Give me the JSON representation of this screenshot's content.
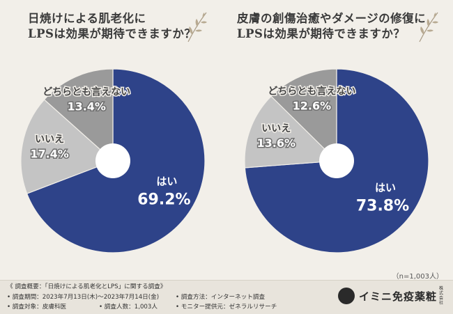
{
  "chart_data": [
    {
      "type": "pie",
      "title": "日焼けによる肌老化に LPSは効果が期待できますか？",
      "title_lines": [
        "日焼けによる肌老化に",
        "LPSは効果が期待できますか？"
      ],
      "categories": [
        "はい",
        "いいえ",
        "どちらとも言えない"
      ],
      "values": [
        69.2,
        17.4,
        13.4
      ],
      "value_labels": [
        "69.2%",
        "17.4%",
        "13.4%"
      ],
      "colors": [
        "#2e4389",
        "#c4c4c4",
        "#9a9a9a"
      ],
      "start_angle": "12 o'clock, clockwise",
      "center_hole": true
    },
    {
      "type": "pie",
      "title": "皮膚の創傷治癒やダメージの修復に LPSは効果が期待できますか？",
      "title_lines": [
        "皮膚の創傷治癒やダメージの修復に",
        "LPSは効果が期待できますか？"
      ],
      "categories": [
        "はい",
        "いいえ",
        "どちらとも言えない"
      ],
      "values": [
        73.8,
        13.6,
        12.6
      ],
      "value_labels": [
        "73.8%",
        "13.6%",
        "12.6%"
      ],
      "colors": [
        "#2e4389",
        "#c4c4c4",
        "#9a9a9a"
      ],
      "start_angle": "12 o'clock, clockwise",
      "center_hole": true
    }
  ],
  "sample_note": "（n=1,003人）",
  "footer": {
    "overview": "《 調査概要：「日焼けによる肌老化とLPS」に関する調査》",
    "period": "• 調査期間：2023年7月13日(木)～2023年7月14日(金)",
    "target": "• 調査対象：皮膚科医",
    "count": "• 調査人数：1,003人",
    "method": "• 調査方法：インターネット調査",
    "provider": "• モニター提供元：ゼネラルリサーチ"
  },
  "logo": {
    "name": "イミニ免疫薬粧",
    "sub": "株式会社"
  }
}
